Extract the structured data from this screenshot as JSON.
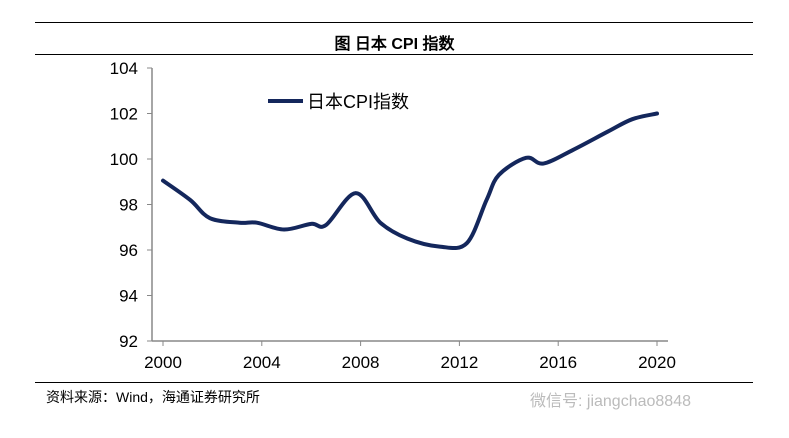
{
  "title": "图  日本 CPI 指数",
  "source": "资料来源：Wind，海通证券研究所",
  "watermark": "微信号: jiangchao8848",
  "chart_data": {
    "type": "line",
    "title": "图  日本 CPI 指数",
    "xlabel": "",
    "ylabel": "",
    "xlim": [
      2000,
      2020
    ],
    "ylim": [
      92,
      104
    ],
    "xticks": [
      "2000",
      "2004",
      "2008",
      "2012",
      "2016",
      "2020"
    ],
    "yticks": [
      "92",
      "94",
      "96",
      "98",
      "100",
      "102",
      "104"
    ],
    "grid": false,
    "legend_position": "top-left",
    "line_color": "#14275c",
    "series": [
      {
        "name": "日本CPI指数",
        "x": [
          2000,
          2001.1,
          2001.9,
          2003.1,
          2003.8,
          2004.9,
          2006,
          2006.6,
          2007.8,
          2008.8,
          2009.9,
          2011.2,
          2012.3,
          2013.1,
          2013.6,
          2014.7,
          2015.4,
          2016.6,
          2018,
          2019,
          2020
        ],
        "y": [
          99.05,
          98.2,
          97.4,
          97.2,
          97.2,
          96.9,
          97.15,
          97.1,
          98.5,
          97.2,
          96.5,
          96.15,
          96.3,
          98.2,
          99.3,
          100.05,
          99.8,
          100.4,
          101.2,
          101.75,
          102.0
        ]
      }
    ]
  }
}
